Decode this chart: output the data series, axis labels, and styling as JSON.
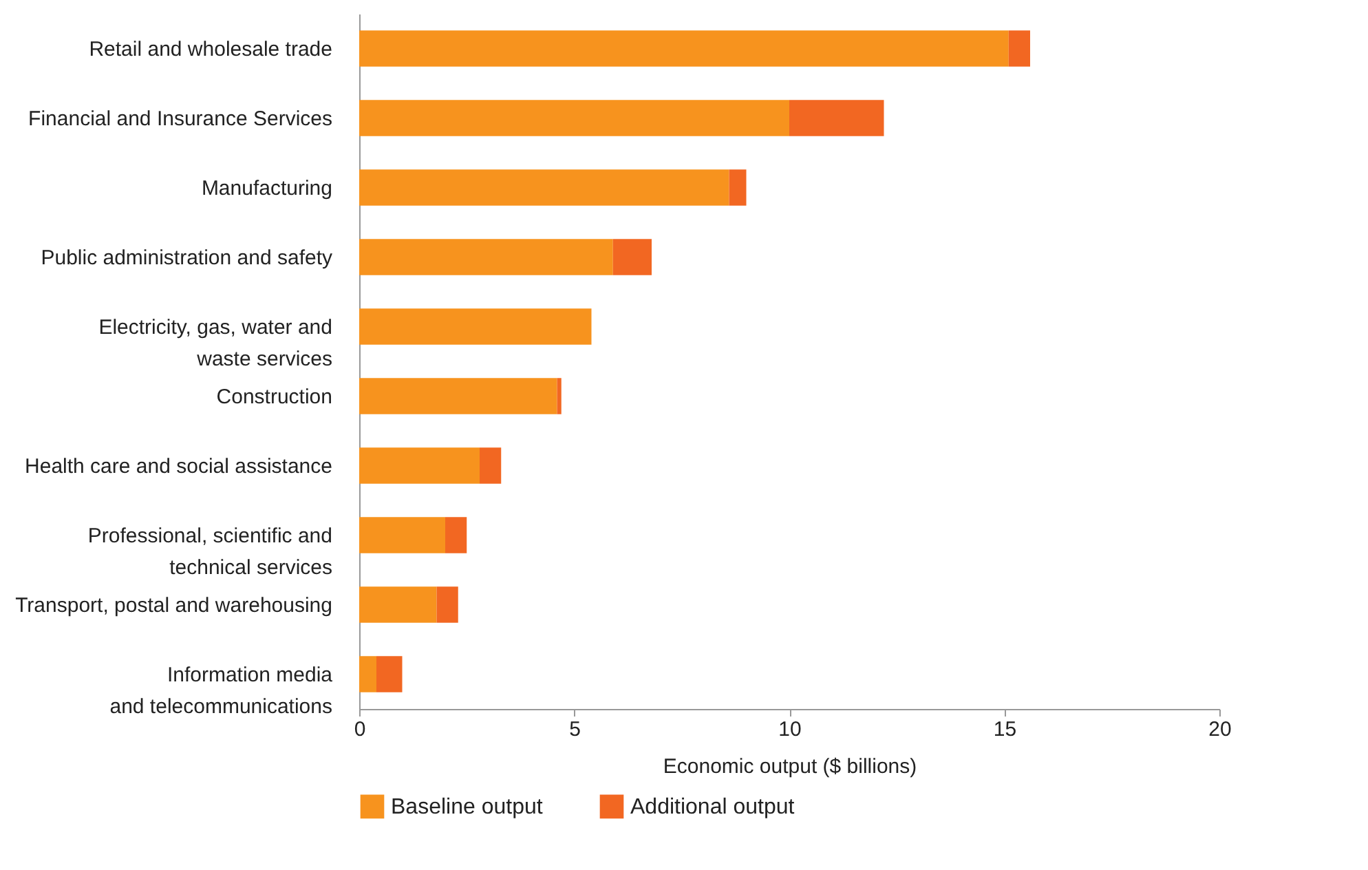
{
  "chart_data": {
    "type": "bar",
    "orientation": "horizontal",
    "stacked": true,
    "xlabel": "Economic output ($ billions)",
    "categories": [
      "Retail and wholesale trade",
      "Financial and Insurance Services",
      "Manufacturing",
      "Public administration and safety",
      "Electricity, gas, water and\nwaste services",
      "Construction",
      "Health care and social assistance",
      "Professional, scientific and\ntechnical services",
      "Transport, postal and warehousing",
      "Information media\nand telecommunications"
    ],
    "series": [
      {
        "name": "Baseline output",
        "color": "#f7931e",
        "values": [
          15.1,
          10.0,
          8.6,
          5.9,
          5.4,
          4.6,
          2.8,
          2.0,
          1.8,
          0.4
        ]
      },
      {
        "name": "Additional output",
        "color": "#f26722",
        "values": [
          0.5,
          2.2,
          0.4,
          0.9,
          0,
          0.1,
          0.5,
          0.5,
          0.5,
          0.6
        ]
      }
    ],
    "xlim": [
      0,
      20
    ],
    "xticks": [
      0,
      5,
      10,
      15,
      20
    ],
    "grid": false,
    "legend": "bottom"
  }
}
